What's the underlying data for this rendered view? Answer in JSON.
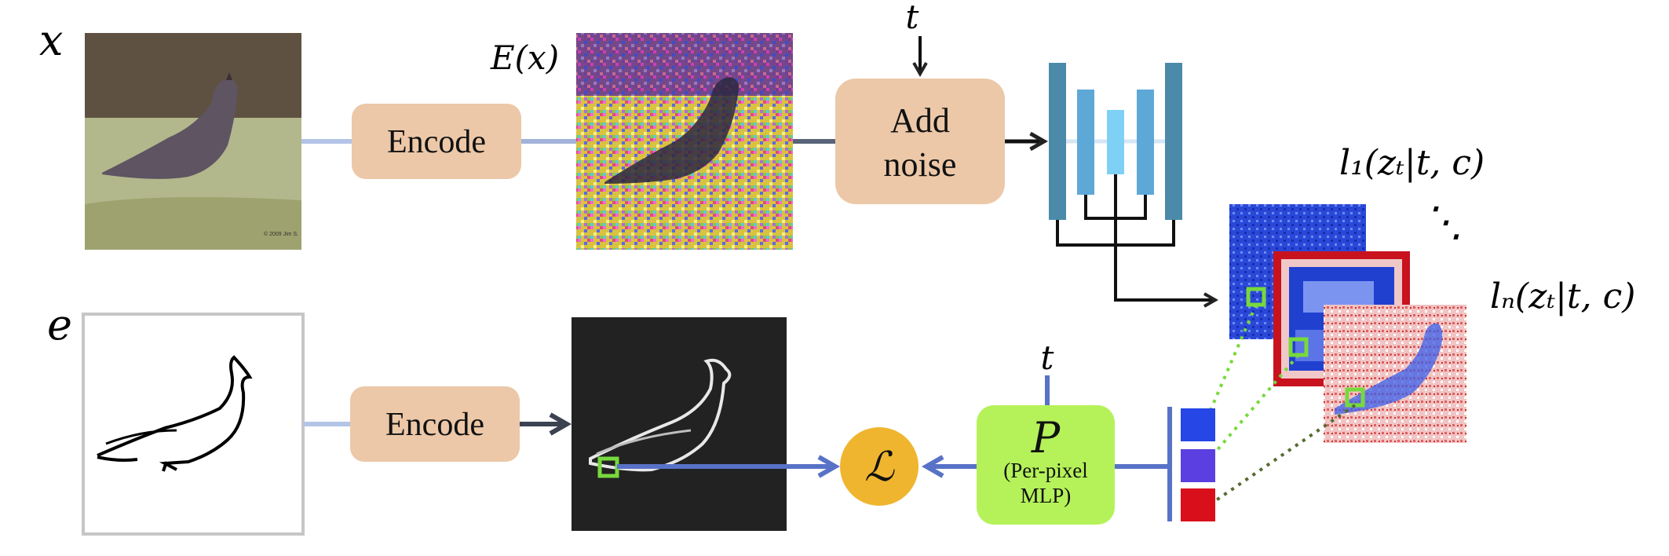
{
  "inputs": {
    "image_var": "x",
    "edge_var": "e",
    "latent_label": "E(x)"
  },
  "blocks": {
    "encode_top": "Encode",
    "encode_bottom": "Encode",
    "add_noise_line1": "Add",
    "add_noise_line2": "noise",
    "mlp_symbol": "P",
    "mlp_line1": "(Per-pixel",
    "mlp_line2": "MLP)",
    "loss_symbol": "ℒ"
  },
  "timestep": {
    "top": "t",
    "bottom": "t"
  },
  "features": {
    "first": "l₁(zₜ|t, c)",
    "last": "lₙ(zₜ|t, c)",
    "ellipsis": "⋱"
  },
  "image_credit": "© 2009 Jim S.",
  "colors": {
    "block_fill": "#ecc8a8",
    "mlp_fill": "#b5f25a",
    "loss_fill": "#efb52f",
    "arrow_blue": "#5872c8",
    "unet_dark": "#4b8aa9",
    "unet_mid": "#5ea8d8",
    "unet_light": "#7fd0f5",
    "highlight_green": "#77d93d",
    "vector_blue": "#2646e6",
    "vector_violet": "#5b3fe0",
    "vector_red": "#d9101b"
  }
}
